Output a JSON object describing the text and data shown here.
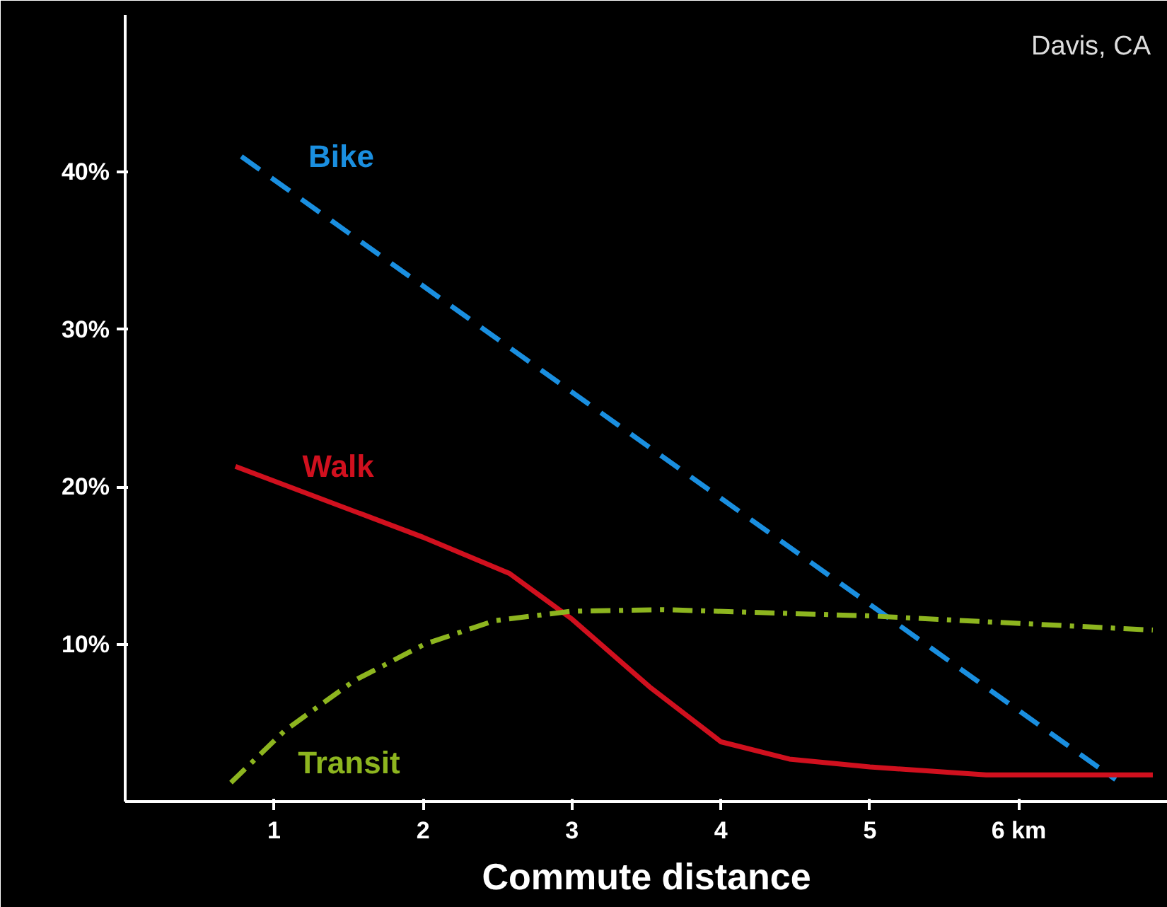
{
  "chart_data": {
    "type": "line",
    "xlabel": "Commute distance",
    "annotations": [
      "Davis, CA"
    ],
    "xlim": [
      0,
      7
    ],
    "ylim": [
      0,
      50
    ],
    "xticks": [
      1,
      2,
      3,
      4,
      5,
      {
        "value": 6,
        "label": "6 km"
      }
    ],
    "yticks": [
      {
        "value": 10,
        "label": "10%"
      },
      {
        "value": 20,
        "label": "20%"
      },
      {
        "value": 30,
        "label": "30%"
      },
      {
        "value": 40,
        "label": "40%"
      }
    ],
    "grid": false,
    "series": [
      {
        "name": "Bike",
        "color": "#1a8fe0",
        "line_style": "dashed",
        "x": [
          0.78,
          6.65
        ],
        "values": [
          41,
          1.4
        ]
      },
      {
        "name": "Walk",
        "color": "#d0101e",
        "line_style": "solid",
        "x": [
          0.74,
          2,
          2.58,
          3,
          3.52,
          4,
          4.46,
          5,
          5.78,
          6.9
        ],
        "values": [
          21.3,
          16.8,
          14.5,
          11.6,
          7.3,
          3.8,
          2.7,
          2.2,
          1.7,
          1.7
        ]
      },
      {
        "name": "Transit",
        "color": "#8db51f",
        "line_style": "dashdot",
        "x": [
          0.71,
          1.07,
          1.54,
          2.01,
          2.48,
          3,
          3.61,
          5,
          6.9
        ],
        "values": [
          1.2,
          4.5,
          7.7,
          10,
          11.5,
          12.1,
          12.2,
          11.8,
          10.9
        ]
      }
    ]
  }
}
